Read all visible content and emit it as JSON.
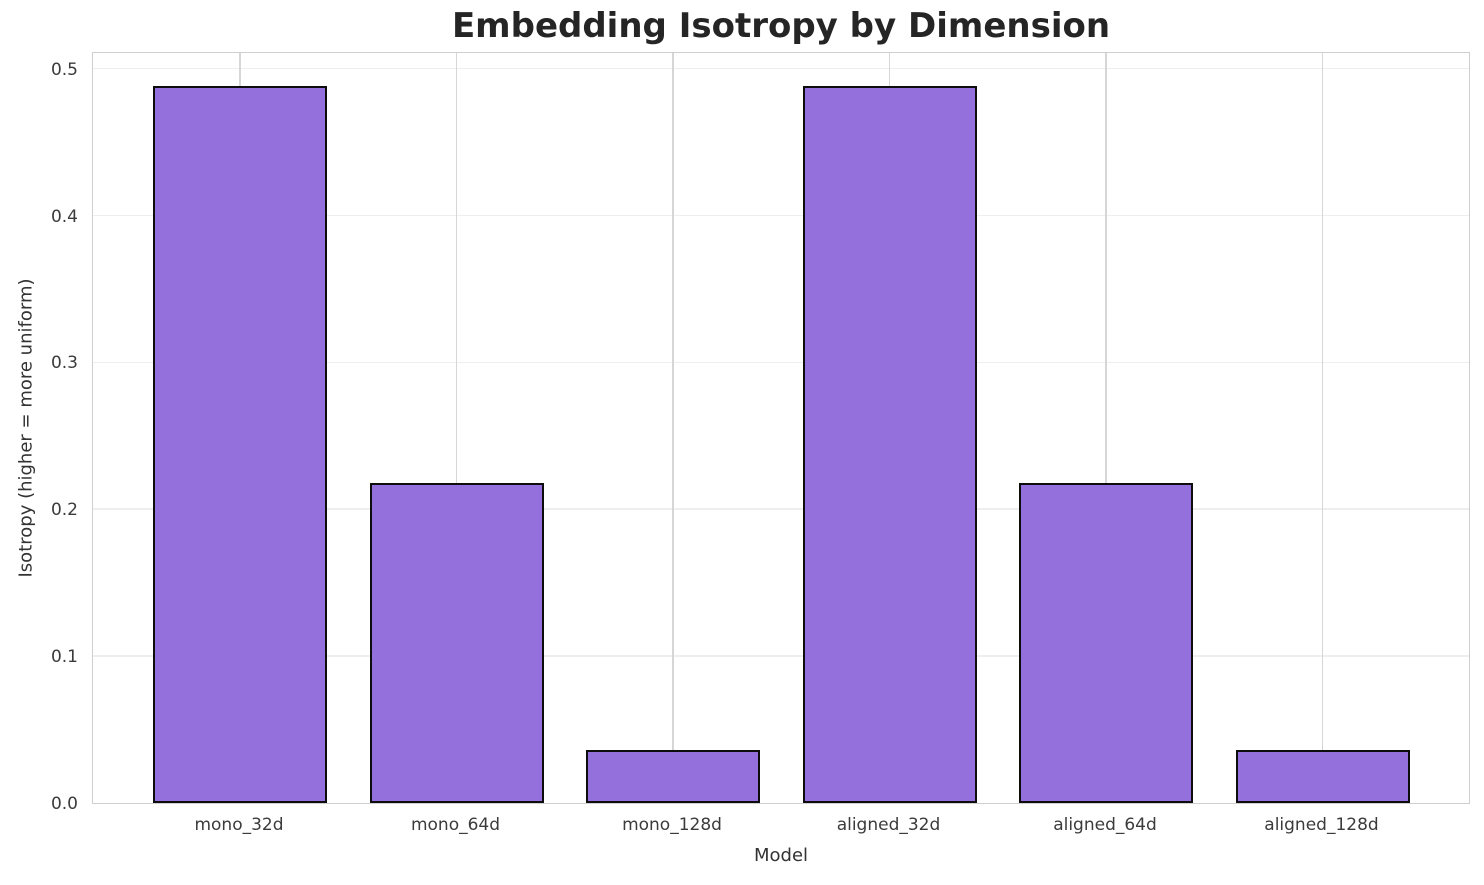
{
  "chart_data": {
    "type": "bar",
    "title": "Embedding Isotropy by Dimension",
    "xlabel": "Model",
    "ylabel": "Isotropy (higher = more uniform)",
    "categories": [
      "mono_32d",
      "mono_64d",
      "mono_128d",
      "aligned_32d",
      "aligned_64d",
      "aligned_128d"
    ],
    "values": [
      0.488,
      0.218,
      0.036,
      0.488,
      0.218,
      0.036
    ],
    "yticks": [
      0.0,
      0.1,
      0.2,
      0.3,
      0.4,
      0.5
    ],
    "ytick_labels": [
      "0.0",
      "0.1",
      "0.2",
      "0.3",
      "0.4",
      "0.5"
    ],
    "ylim": [
      0,
      0.512
    ],
    "grid": true,
    "legend_position": "none",
    "bar_color": "#9370DB",
    "bar_edge_color": "#0d0d0d",
    "grid_color_horizontal": "#eeeeee",
    "grid_color_vertical": "#d6d6d6",
    "title_color": "#252525",
    "tick_label_color": "#3b3b3b",
    "background_color": "#ffffff"
  }
}
